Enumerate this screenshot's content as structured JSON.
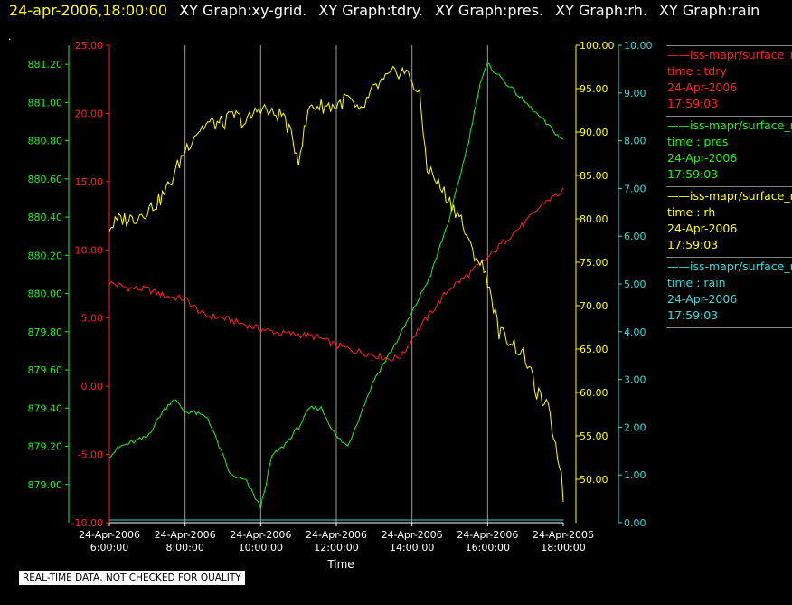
{
  "header": {
    "datetime": "24-apr-2006,18:00:00",
    "titles": [
      "XY Graph:xy-grid.",
      "XY Graph:tdry.",
      "XY Graph:pres.",
      "XY Graph:rh.",
      "XY Graph:rain"
    ]
  },
  "marker": ".",
  "banner": "REAL-TIME DATA, NOT CHECKED FOR QUALITY",
  "legend": [
    {
      "line1": "iss-mapr/surface_m",
      "line2": "time : tdry",
      "line3": "24-Apr-2006",
      "line4": "17:59:03",
      "color": "#ff2020"
    },
    {
      "line1": "iss-mapr/surface_m",
      "line2": "time : pres",
      "line3": "24-Apr-2006",
      "line4": "17:59:03",
      "color": "#22ee22"
    },
    {
      "line1": "iss-mapr/surface_m",
      "line2": "time : rh",
      "line3": "24-Apr-2006",
      "line4": "17:59:03",
      "color": "#ffff00"
    },
    {
      "line1": "iss-mapr/surface_m",
      "line2": "time : rain",
      "line3": "24-Apr-2006",
      "line4": "17:59:03",
      "color": "#33dddd"
    }
  ],
  "chart_data": {
    "type": "line",
    "grid": true,
    "xlabel": "Time",
    "x_ticks": [
      {
        "date": "24-Apr-2006",
        "time": "6:00:00"
      },
      {
        "date": "24-Apr-2006",
        "time": "8:00:00"
      },
      {
        "date": "24-Apr-2006",
        "time": "10:00:00"
      },
      {
        "date": "24-Apr-2006",
        "time": "12:00:00"
      },
      {
        "date": "24-Apr-2006",
        "time": "14:00:00"
      },
      {
        "date": "24-Apr-2006",
        "time": "16:00:00"
      },
      {
        "date": "24-Apr-2006",
        "time": "18:00:00"
      }
    ],
    "x_range_hours": [
      6,
      18
    ],
    "axes": {
      "tdry": {
        "color": "#ff2020",
        "range": [
          -10,
          25
        ],
        "ticks": [
          "25.00",
          "20.00",
          "15.00",
          "10.00",
          "5.00",
          "0.00",
          "-5.00",
          "-10.00"
        ]
      },
      "pres": {
        "color": "#22ee22",
        "range": [
          878.8,
          881.3
        ],
        "ticks": [
          "881.20",
          "881.00",
          "880.80",
          "880.60",
          "880.40",
          "880.20",
          "880.00",
          "879.80",
          "879.60",
          "879.40",
          "879.20",
          "879.00"
        ]
      },
      "rh": {
        "color": "#ffff00",
        "range": [
          45,
          100
        ],
        "ticks": [
          "100.00",
          "95.00",
          "90.00",
          "85.00",
          "80.00",
          "75.00",
          "70.00",
          "65.00",
          "60.00",
          "55.00",
          "50.00"
        ]
      },
      "rain": {
        "color": "#33dddd",
        "range": [
          0,
          10
        ],
        "ticks": [
          "10.00",
          "9.00",
          "8.00",
          "7.00",
          "6.00",
          "5.00",
          "4.00",
          "3.00",
          "2.00",
          "1.00",
          "0.00"
        ]
      }
    },
    "series": [
      {
        "key": "tdry",
        "color": "#ff2020",
        "x": [
          6.0,
          6.5,
          7.0,
          7.5,
          8.0,
          8.5,
          9.0,
          9.5,
          10.0,
          10.5,
          11.0,
          11.5,
          12.0,
          12.5,
          13.0,
          13.25,
          13.5,
          13.75,
          14.0,
          14.5,
          15.0,
          15.5,
          16.0,
          16.5,
          17.0,
          17.5,
          18.0
        ],
        "values": [
          7.6,
          7.2,
          7.1,
          6.6,
          6.4,
          5.2,
          5.0,
          4.6,
          4.2,
          3.9,
          3.8,
          3.6,
          3.0,
          2.6,
          2.3,
          2.1,
          2.0,
          2.3,
          3.5,
          5.4,
          7.2,
          8.2,
          9.4,
          10.8,
          12.0,
          13.5,
          14.3
        ]
      },
      {
        "key": "pres",
        "color": "#22ee22",
        "x": [
          6.0,
          6.3,
          6.6,
          7.0,
          7.4,
          7.7,
          8.0,
          8.2,
          8.6,
          9.0,
          9.2,
          9.6,
          10.0,
          10.3,
          10.6,
          11.0,
          11.3,
          11.6,
          12.0,
          12.3,
          12.6,
          13.0,
          13.3,
          13.6,
          14.0,
          14.5,
          15.0,
          15.5,
          15.8,
          16.0,
          16.5,
          17.0,
          17.5,
          18.0
        ],
        "values": [
          879.15,
          879.2,
          879.22,
          879.25,
          879.38,
          879.45,
          879.38,
          879.38,
          879.35,
          879.15,
          879.05,
          879.02,
          878.88,
          879.15,
          879.2,
          879.3,
          879.4,
          879.4,
          879.25,
          879.2,
          879.35,
          879.55,
          879.65,
          879.75,
          879.9,
          880.1,
          880.4,
          880.8,
          881.1,
          881.2,
          881.1,
          881.0,
          880.9,
          880.8
        ]
      },
      {
        "key": "rh",
        "color": "#ffff00",
        "x": [
          6.0,
          6.3,
          6.6,
          7.0,
          7.3,
          7.6,
          8.0,
          8.3,
          8.6,
          9.0,
          9.3,
          9.6,
          10.0,
          10.3,
          10.6,
          11.0,
          11.3,
          11.6,
          12.0,
          12.3,
          12.6,
          13.0,
          13.3,
          13.6,
          13.8,
          14.0,
          14.2,
          14.4,
          14.7,
          15.0,
          15.3,
          15.5,
          15.8,
          16.0,
          16.3,
          16.6,
          17.0,
          17.3,
          17.6,
          17.9,
          18.0
        ],
        "values": [
          79,
          80,
          80,
          81,
          82,
          84,
          88,
          90,
          91,
          91,
          92,
          91,
          93,
          92,
          92,
          87,
          93,
          93,
          93,
          94,
          92,
          95,
          96,
          97,
          97,
          96,
          94,
          86,
          84,
          82,
          80,
          77,
          75,
          73,
          67,
          66,
          64,
          60,
          58,
          52,
          48
        ]
      },
      {
        "key": "rain",
        "color": "#33dddd",
        "x": [
          6.0,
          18.0
        ],
        "values": [
          0.0,
          0.0
        ]
      }
    ]
  }
}
